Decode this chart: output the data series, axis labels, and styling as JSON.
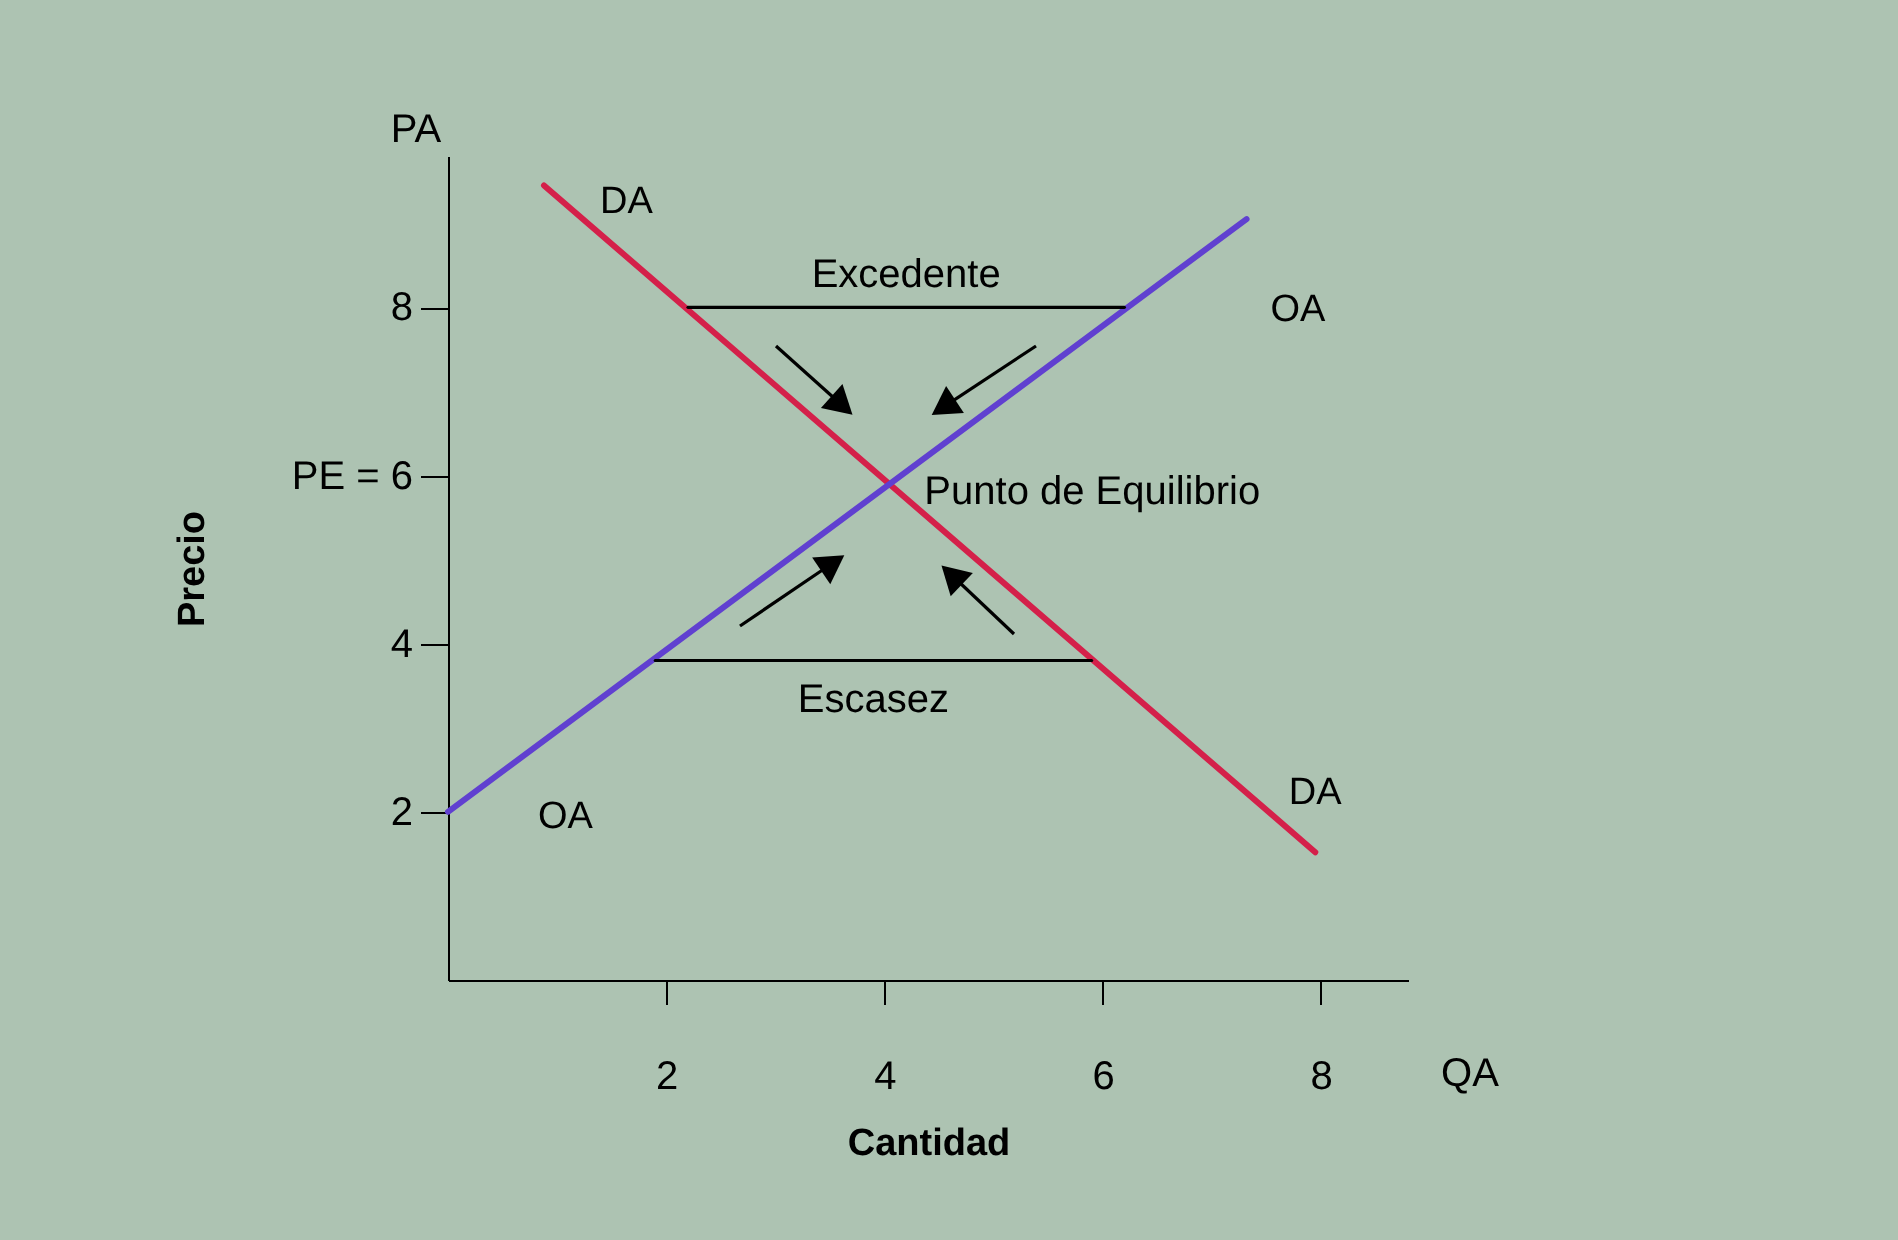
{
  "chart_data": {
    "type": "line",
    "xlabel": "Cantidad",
    "ylabel": "Precio",
    "xlim": [
      0,
      8.8
    ],
    "ylim": [
      0,
      9.8
    ],
    "xticks": [
      2,
      4,
      6,
      8
    ],
    "yticks": [
      2,
      4,
      {
        "value": 6,
        "label": "PE = 6"
      },
      8
    ],
    "grid": false,
    "marker": "none",
    "line_style": "solid",
    "series": [
      {
        "name": "DA",
        "color": "#d4204a",
        "x": [
          0.88,
          7.95
        ],
        "values": [
          9.45,
          1.52
        ]
      },
      {
        "name": "OA",
        "color": "#6040d0",
        "x": [
          0,
          7.32
        ],
        "values": [
          2,
          9.05
        ]
      },
      {
        "color": "#000000",
        "x": [
          2.2,
          6.2
        ],
        "values": [
          8,
          8
        ]
      },
      {
        "color": "#000000",
        "x": [
          1.9,
          5.9
        ],
        "values": [
          3.8,
          3.8
        ]
      }
    ],
    "annotations": [
      {
        "text": "Excedente",
        "x": 4.2,
        "y": 8
      },
      {
        "text": "Escasez",
        "x": 3.9,
        "y": 3.8
      },
      {
        "text": "Punto de Equilibrio",
        "x": 4,
        "y": 6
      },
      "PA",
      "QA"
    ]
  }
}
